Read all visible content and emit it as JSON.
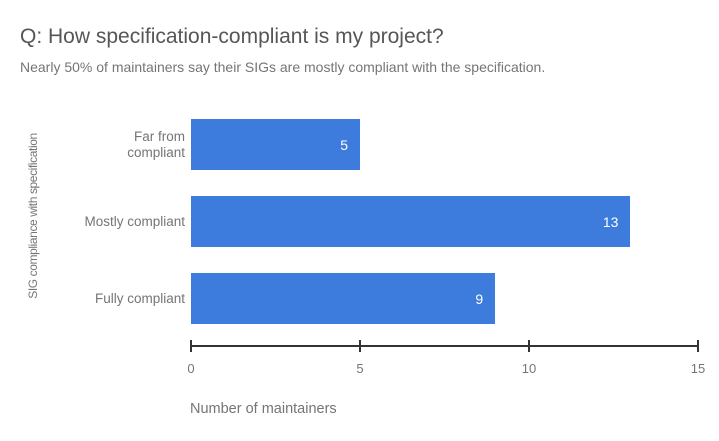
{
  "header": {
    "title": "Q: How specification-compliant is my project?",
    "subtitle": "Nearly 50% of maintainers say their SIGs are mostly compliant with the specification."
  },
  "chart_data": {
    "type": "bar",
    "orientation": "horizontal",
    "title": "Q: How specification-compliant is my project?",
    "subtitle": "Nearly 50% of maintainers say their SIGs are mostly compliant with the specification.",
    "categories": [
      "Far from compliant",
      "Mostly compliant",
      "Fully compliant"
    ],
    "categories_display": [
      "Far from\ncompliant",
      "Mostly compliant",
      "Fully compliant"
    ],
    "values": [
      5,
      13,
      9
    ],
    "xlabel": "Number of maintainers",
    "ylabel": "SIG compliance with specification",
    "xlim": [
      0,
      15
    ],
    "x_ticks": [
      0,
      5,
      10,
      15
    ],
    "grid": false,
    "legend": "none",
    "bar_color": "#3d7bdc",
    "value_label_color": "#ffffff",
    "value_labels_inside_bars": true
  },
  "colors": {
    "background": "#ffffff",
    "title_text": "#565656",
    "muted_text": "#757575",
    "axis_line": "#333333",
    "bar": "#3d7bdc"
  }
}
